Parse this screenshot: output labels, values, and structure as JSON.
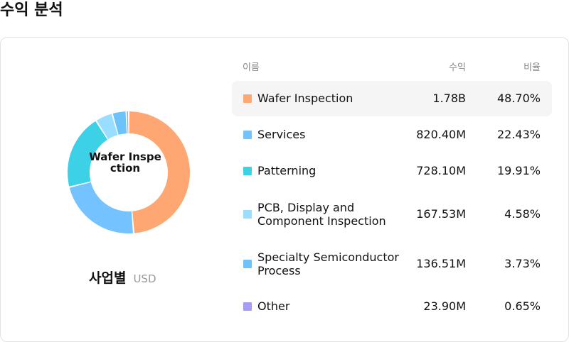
{
  "page": {
    "title": "수익 분석"
  },
  "chart": {
    "center_label": "Wafer Inspection",
    "caption": "사업별",
    "unit": "USD"
  },
  "table": {
    "headers": {
      "name": "이름",
      "revenue": "수익",
      "ratio": "비율"
    },
    "rows": [
      {
        "name": "Wafer Inspection",
        "revenue": "1.78B",
        "ratio": "48.70%",
        "color": "#FFA772",
        "highlight": true
      },
      {
        "name": "Services",
        "revenue": "820.40M",
        "ratio": "22.43%",
        "color": "#74C2FF",
        "highlight": false
      },
      {
        "name": "Patterning",
        "revenue": "728.10M",
        "ratio": "19.91%",
        "color": "#3DD1E8",
        "highlight": false
      },
      {
        "name": "PCB, Display and Component Inspection",
        "revenue": "167.53M",
        "ratio": "4.58%",
        "color": "#99DDFF",
        "highlight": false
      },
      {
        "name": "Specialty Semiconductor Process",
        "revenue": "136.51M",
        "ratio": "3.73%",
        "color": "#6CC3FA",
        "highlight": false
      },
      {
        "name": "Other",
        "revenue": "23.90M",
        "ratio": "0.65%",
        "color": "#A59CF5",
        "highlight": false
      }
    ]
  },
  "chart_data": {
    "type": "pie",
    "categories": [
      "Wafer Inspection",
      "Services",
      "Patterning",
      "PCB, Display and Component Inspection",
      "Specialty Semiconductor Process",
      "Other"
    ],
    "values": [
      48.7,
      22.43,
      19.91,
      4.58,
      3.73,
      0.65
    ],
    "colors": [
      "#FFA772",
      "#74C2FF",
      "#3DD1E8",
      "#99DDFF",
      "#6CC3FA",
      "#A59CF5"
    ]
  }
}
